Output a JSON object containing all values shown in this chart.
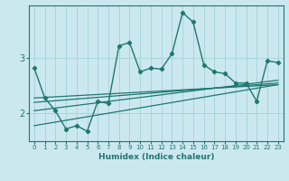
{
  "title": "",
  "xlabel": "Humidex (Indice chaleur)",
  "bg_color": "#cce8ef",
  "grid_color": "#a8d4dc",
  "line_color": "#1e7870",
  "xlim": [
    -0.5,
    23.5
  ],
  "ylim": [
    1.5,
    3.95
  ],
  "yticks": [
    2,
    3
  ],
  "xticks": [
    0,
    1,
    2,
    3,
    4,
    5,
    6,
    7,
    8,
    9,
    10,
    11,
    12,
    13,
    14,
    15,
    16,
    17,
    18,
    19,
    20,
    21,
    22,
    23
  ],
  "series1_x": [
    0,
    1,
    2,
    3,
    4,
    5,
    6,
    7,
    8,
    9,
    10,
    11,
    12,
    13,
    14,
    15,
    16,
    17,
    18,
    19,
    20,
    21,
    22,
    23
  ],
  "series1_y": [
    2.82,
    2.28,
    2.05,
    1.72,
    1.78,
    1.68,
    2.22,
    2.18,
    3.22,
    3.28,
    2.75,
    2.82,
    2.8,
    3.08,
    3.82,
    3.65,
    2.88,
    2.75,
    2.72,
    2.55,
    2.55,
    2.22,
    2.95,
    2.92
  ],
  "trend1_x": [
    0,
    23
  ],
  "trend1_y": [
    2.28,
    2.52
  ],
  "trend2_x": [
    0,
    23
  ],
  "trend2_y": [
    2.2,
    2.55
  ],
  "trend3_x": [
    0,
    23
  ],
  "trend3_y": [
    2.05,
    2.6
  ],
  "trend4_x": [
    0,
    23
  ],
  "trend4_y": [
    1.78,
    2.52
  ]
}
